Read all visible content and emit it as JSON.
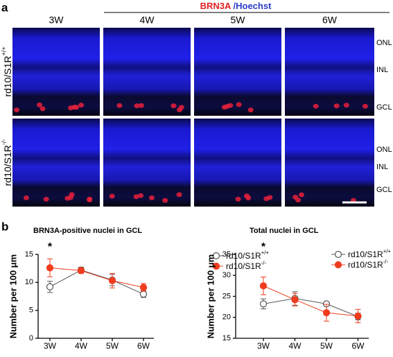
{
  "panel_a": {
    "label": "a",
    "stain_red": "BRN3A",
    "stain_blue": " /Hoechst",
    "columns": [
      "3W",
      "4W",
      "5W",
      "6W"
    ],
    "rows": [
      {
        "base": "rd10/S1R",
        "sup": "+/+"
      },
      {
        "base": "rd10/S1R",
        "sup": "-/-"
      }
    ],
    "layers": [
      [
        "ONL",
        "INL",
        "GCL"
      ],
      [
        "ONL",
        "INL",
        "GCL"
      ]
    ]
  },
  "panel_b": {
    "label": "b"
  },
  "chart_data": [
    {
      "type": "line",
      "title": "BRN3A-positive nuclei in GCL",
      "y_label": "Number per 100 μm",
      "categories": [
        "3W",
        "4W",
        "5W",
        "6W"
      ],
      "ylim": [
        0,
        15
      ],
      "yticks": [
        0,
        5,
        10,
        15
      ],
      "annotations": [
        {
          "text": "*",
          "category": 0
        }
      ],
      "legend": "top-right",
      "series": [
        {
          "name": "rd10/S1R",
          "name_superscript": "+/+",
          "color": "#555555",
          "marker": "open",
          "values": [
            9.2,
            12.2,
            10.4,
            7.9
          ],
          "errors": [
            1.0,
            0.5,
            1.0,
            0.6
          ]
        },
        {
          "name": "rd10/S1R",
          "name_superscript": "-/-",
          "color": "#f03c1e",
          "marker": "filled",
          "values": [
            12.6,
            12.1,
            10.3,
            9.1
          ],
          "errors": [
            1.6,
            0.5,
            1.3,
            0.7
          ]
        }
      ]
    },
    {
      "type": "line",
      "title": "Total nuclei in GCL",
      "y_label": "Number per 100 μm",
      "categories": [
        "3W",
        "4W",
        "5W",
        "6W"
      ],
      "ylim": [
        15,
        35
      ],
      "yticks": [
        15,
        20,
        25,
        30,
        35
      ],
      "annotations": [
        {
          "text": "*",
          "category": 0
        }
      ],
      "legend": "top-right",
      "series": [
        {
          "name": "rd10/S1R",
          "name_superscript": "+/+",
          "color": "#555555",
          "marker": "open",
          "values": [
            23.2,
            24.5,
            23.2,
            20.2
          ],
          "errors": [
            1.2,
            1.6,
            0.4,
            0.8
          ]
        },
        {
          "name": "rd10/S1R",
          "name_superscript": "-/-",
          "color": "#f03c1e",
          "marker": "filled",
          "values": [
            27.5,
            24.2,
            21.1,
            20.3
          ],
          "errors": [
            2.1,
            1.5,
            2.0,
            1.6
          ]
        }
      ]
    }
  ]
}
